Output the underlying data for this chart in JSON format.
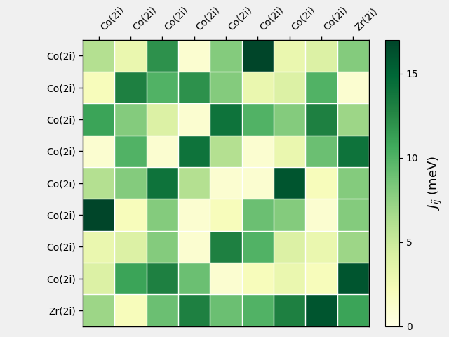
{
  "labels": [
    "Co(2i)",
    "Co(2i)",
    "Co(2i)",
    "Co(2i)",
    "Co(2i)",
    "Co(2i)",
    "Co(2i)",
    "Co(2i)",
    "Zr(2i)"
  ],
  "matrix": [
    [
      6,
      3,
      12,
      1,
      8,
      17,
      3,
      4,
      8
    ],
    [
      2,
      13,
      10,
      12,
      8,
      3,
      4,
      10,
      1
    ],
    [
      11,
      8,
      4,
      1,
      14,
      10,
      8,
      13,
      7
    ],
    [
      1,
      10,
      1,
      14,
      6,
      1,
      3,
      9,
      14
    ],
    [
      6,
      8,
      14,
      6,
      1,
      1,
      16,
      2,
      8
    ],
    [
      17,
      2,
      8,
      1,
      2,
      9,
      8,
      1,
      8
    ],
    [
      3,
      4,
      8,
      1,
      13,
      10,
      4,
      3,
      7
    ],
    [
      4,
      11,
      13,
      9,
      1,
      2,
      3,
      2,
      16
    ],
    [
      7,
      2,
      9,
      13,
      9,
      10,
      13,
      16,
      11
    ]
  ],
  "vmin": 0,
  "vmax": 17,
  "cmap": "YlGn",
  "colorbar_label": "$\\mathit{J}_{ij}$ (meV)",
  "colorbar_ticks": [
    0,
    5,
    10,
    15
  ],
  "figsize": [
    6.4,
    4.8
  ],
  "dpi": 100,
  "bg_color": "#f0f0f0"
}
